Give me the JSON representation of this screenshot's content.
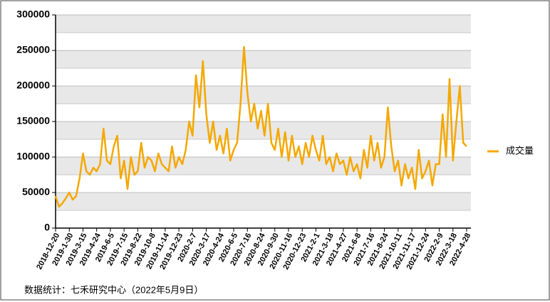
{
  "chart_data": {
    "type": "line",
    "categories": [
      "2018-12-20",
      null,
      null,
      null,
      "2019-1-30",
      null,
      null,
      null,
      "2019-3-15",
      null,
      null,
      null,
      "2019-4-24",
      null,
      null,
      null,
      "2019-6-5",
      null,
      null,
      null,
      "2019-7-15",
      null,
      null,
      null,
      "2019-8-22",
      null,
      null,
      null,
      "2019-10-8",
      null,
      null,
      null,
      "2019-11-14",
      null,
      null,
      null,
      "2019-12-23",
      null,
      null,
      null,
      "2020-2-7",
      null,
      null,
      null,
      "2020-3-17",
      null,
      null,
      null,
      "2020-4-24",
      null,
      null,
      null,
      "2020-6-5",
      null,
      null,
      null,
      "2020-7-16",
      null,
      null,
      null,
      "2020-8-24",
      null,
      null,
      null,
      "2020-9-30",
      null,
      null,
      null,
      "2020-11-16",
      null,
      null,
      null,
      "2020-12-23",
      null,
      null,
      null,
      "2021-2-1",
      null,
      null,
      null,
      "2021-3-18",
      null,
      null,
      null,
      "2021-4-27",
      null,
      null,
      null,
      "2021-6-8",
      null,
      null,
      null,
      "2021-7-16",
      null,
      null,
      null,
      "2021-8-24",
      null,
      null,
      null,
      "2021-10-11",
      null,
      null,
      null,
      "2021-11-17",
      null,
      null,
      null,
      "2021-12-24",
      null,
      null,
      null,
      "2022-2-9",
      null,
      null,
      null,
      "2022-3-18",
      null,
      null,
      null,
      "2022-4-28"
    ],
    "series": [
      {
        "name": "成交量",
        "color": "#f5a800",
        "values": [
          45000,
          30000,
          35000,
          42000,
          50000,
          40000,
          45000,
          70000,
          105000,
          80000,
          75000,
          85000,
          80000,
          90000,
          140000,
          95000,
          90000,
          115000,
          130000,
          70000,
          95000,
          55000,
          100000,
          75000,
          80000,
          120000,
          85000,
          100000,
          95000,
          80000,
          105000,
          90000,
          85000,
          80000,
          115000,
          85000,
          100000,
          90000,
          110000,
          150000,
          130000,
          215000,
          170000,
          235000,
          160000,
          120000,
          150000,
          110000,
          130000,
          105000,
          140000,
          95000,
          110000,
          120000,
          175000,
          255000,
          190000,
          150000,
          175000,
          140000,
          165000,
          130000,
          175000,
          120000,
          110000,
          140000,
          100000,
          135000,
          95000,
          130000,
          100000,
          115000,
          90000,
          120000,
          100000,
          130000,
          110000,
          95000,
          130000,
          90000,
          100000,
          80000,
          105000,
          90000,
          95000,
          75000,
          100000,
          80000,
          90000,
          70000,
          110000,
          85000,
          130000,
          95000,
          120000,
          85000,
          100000,
          170000,
          115000,
          80000,
          95000,
          60000,
          90000,
          70000,
          85000,
          55000,
          110000,
          70000,
          80000,
          95000,
          60000,
          90000,
          90000,
          160000,
          100000,
          210000,
          95000,
          150000,
          200000,
          120000,
          115000
        ]
      }
    ],
    "ylim": [
      0,
      300000
    ],
    "yticks": [
      0,
      50000,
      100000,
      150000,
      200000,
      250000,
      300000
    ],
    "grid": true,
    "legend": "right",
    "source": "数据统计：七禾研究中心（2022年5月9日）"
  }
}
